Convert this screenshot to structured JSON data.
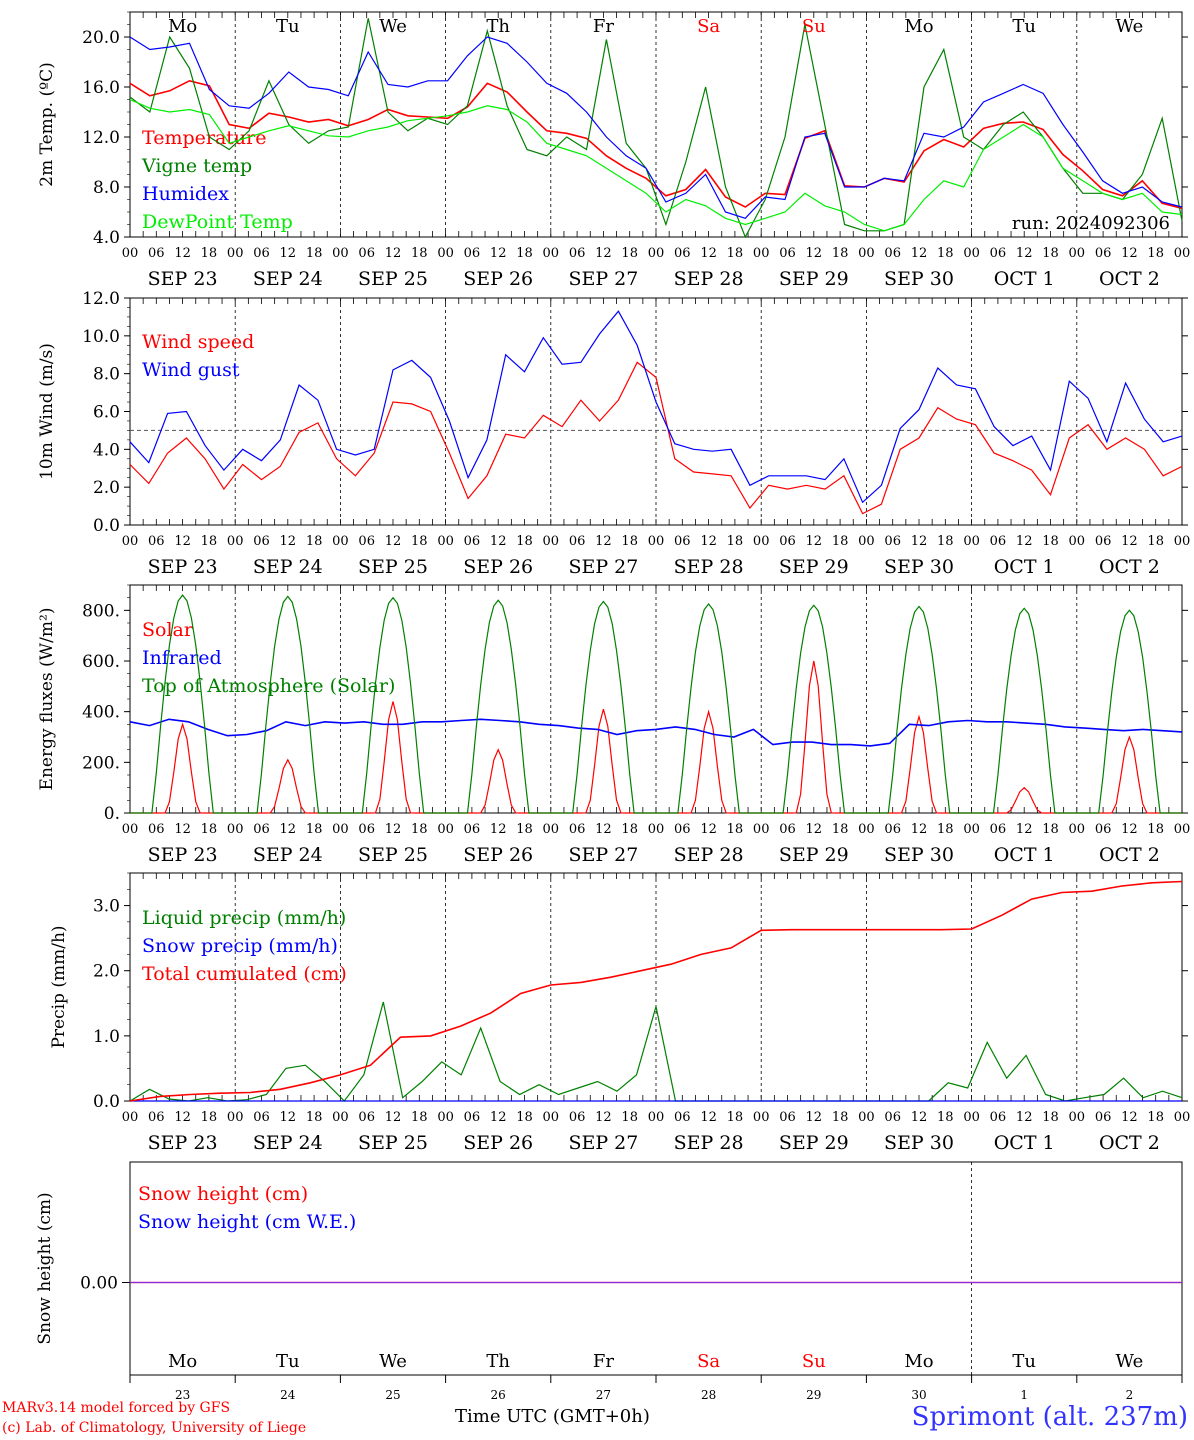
{
  "chart_data": {
    "days": [
      "Mo",
      "Tu",
      "We",
      "Th",
      "Fr",
      "Sa",
      "Su",
      "Mo",
      "Tu",
      "We"
    ],
    "weekend_days": [
      "Sa",
      "Su"
    ],
    "dates": [
      "SEP 23",
      "SEP 24",
      "SEP 25",
      "SEP 26",
      "SEP 27",
      "SEP 28",
      "SEP 29",
      "SEP 30",
      "OCT  1",
      "OCT  2"
    ],
    "date_numbers": [
      "23",
      "24",
      "25",
      "26",
      "27",
      "28",
      "29",
      "30",
      "1",
      "2"
    ],
    "hour_ticks": [
      "00",
      "06",
      "12",
      "18"
    ],
    "last_hour_tick": "00",
    "panels": [
      {
        "id": "temperature",
        "type": "line",
        "ylabel": "2m Temp. (ºC)",
        "ylim": [
          4,
          22
        ],
        "yticks": [
          4,
          8,
          12,
          16,
          20
        ],
        "ytick_labels": [
          "4.0",
          "8.0",
          "12.0",
          "16.0",
          "20.0"
        ],
        "annotation": "run: 2024092306",
        "series": [
          {
            "name": "Temperature",
            "color": "#ff0000",
            "values": [
              16.3,
              15.3,
              15.7,
              16.5,
              16.1,
              13.0,
              12.7,
              13.9,
              13.6,
              13.2,
              13.4,
              12.9,
              13.4,
              14.2,
              13.7,
              13.6,
              13.5,
              14.4,
              16.3,
              15.6,
              14.0,
              12.5,
              12.3,
              11.9,
              10.5,
              9.5,
              8.7,
              7.3,
              7.8,
              9.4,
              7.2,
              6.4,
              7.5,
              7.4,
              11.9,
              12.5,
              8.1,
              8.0,
              8.7,
              8.4,
              10.9,
              11.8,
              11.2,
              12.7,
              13.1,
              13.2,
              12.6,
              10.6,
              9.3,
              7.8,
              7.3,
              8.5,
              6.7,
              6.3
            ]
          },
          {
            "name": "Vigne temp",
            "color": "#008000",
            "values": [
              15.2,
              14.0,
              20.0,
              17.5,
              12.0,
              11.0,
              12.5,
              16.5,
              13.0,
              11.5,
              12.5,
              12.8,
              21.5,
              14.0,
              12.5,
              13.5,
              13.0,
              14.5,
              20.5,
              14.5,
              11.0,
              10.5,
              12.0,
              11.0,
              19.8,
              11.5,
              9.5,
              5.0,
              10.0,
              16.0,
              8.0,
              4.0,
              7.0,
              12.0,
              21.0,
              13.0,
              5.0,
              4.5,
              4.5,
              5.0,
              16.0,
              19.0,
              12.0,
              11.0,
              13.0,
              14.0,
              12.0,
              9.5,
              7.5,
              7.5,
              7.0,
              9.0,
              13.5,
              5.3
            ]
          },
          {
            "name": "Humidex",
            "color": "#0000ff",
            "values": [
              20.0,
              19.0,
              19.2,
              19.5,
              15.8,
              14.5,
              14.3,
              15.5,
              17.2,
              16.0,
              15.8,
              15.3,
              18.8,
              16.2,
              16.0,
              16.5,
              16.5,
              18.5,
              20.0,
              19.5,
              18.0,
              16.3,
              15.5,
              14.0,
              12.0,
              10.5,
              9.5,
              6.8,
              7.5,
              9.0,
              6.0,
              5.5,
              7.2,
              7.0,
              12.0,
              12.3,
              8.0,
              8.0,
              8.7,
              8.5,
              12.3,
              12.0,
              12.8,
              14.8,
              15.5,
              16.2,
              15.5,
              13.0,
              10.8,
              8.5,
              7.5,
              8.0,
              6.8,
              6.4
            ]
          },
          {
            "name": "DewPoint Temp",
            "color": "#00ee00",
            "values": [
              15.0,
              14.3,
              14.0,
              14.2,
              13.8,
              11.5,
              12.0,
              12.5,
              12.9,
              12.5,
              12.1,
              12.0,
              12.5,
              12.8,
              13.3,
              13.5,
              13.7,
              14.0,
              14.5,
              14.2,
              13.2,
              11.5,
              11.0,
              10.5,
              9.5,
              8.5,
              7.5,
              6.0,
              7.0,
              6.5,
              5.5,
              5.0,
              5.5,
              6.0,
              7.5,
              6.5,
              6.0,
              5.0,
              4.5,
              5.0,
              7.0,
              8.5,
              8.0,
              11.0,
              12.0,
              13.0,
              12.0,
              9.5,
              8.5,
              7.5,
              7.0,
              7.5,
              6.0,
              5.8
            ]
          }
        ]
      },
      {
        "id": "wind",
        "type": "line",
        "ylabel": "10m Wind (m/s)",
        "ylim": [
          0,
          12
        ],
        "yticks": [
          0,
          2,
          4,
          6,
          8,
          10,
          12
        ],
        "ytick_labels": [
          "0.0",
          "2.0",
          "4.0",
          "6.0",
          "8.0",
          "10.0",
          "12.0"
        ],
        "reference_line": 5.0,
        "series": [
          {
            "name": "Wind speed",
            "color": "#ff0000",
            "values": [
              3.2,
              2.2,
              3.8,
              4.6,
              3.5,
              1.9,
              3.2,
              2.4,
              3.1,
              4.9,
              5.4,
              3.5,
              2.6,
              3.8,
              6.5,
              6.4,
              6.0,
              3.8,
              1.4,
              2.6,
              4.8,
              4.6,
              5.8,
              5.2,
              6.6,
              5.5,
              6.6,
              8.6,
              7.8,
              3.5,
              2.8,
              2.7,
              2.6,
              0.9,
              2.1,
              1.9,
              2.1,
              1.9,
              2.6,
              0.6,
              1.1,
              4.0,
              4.6,
              6.2,
              5.6,
              5.3,
              3.8,
              3.4,
              2.9,
              1.6,
              4.6,
              5.3,
              4.0,
              4.6,
              4.0,
              2.6,
              3.1
            ]
          },
          {
            "name": "Wind gust",
            "color": "#0000ff",
            "values": [
              4.4,
              3.3,
              5.9,
              6.0,
              4.2,
              2.9,
              4.0,
              3.4,
              4.5,
              7.4,
              6.6,
              4.0,
              3.7,
              4.0,
              8.2,
              8.7,
              7.8,
              5.5,
              2.5,
              4.5,
              9.0,
              8.1,
              9.9,
              8.5,
              8.6,
              10.1,
              11.3,
              9.5,
              6.5,
              4.3,
              4.0,
              3.9,
              4.0,
              2.1,
              2.6,
              2.6,
              2.6,
              2.4,
              3.5,
              1.2,
              2.1,
              5.1,
              6.1,
              8.3,
              7.4,
              7.2,
              5.2,
              4.2,
              4.7,
              2.9,
              7.6,
              6.7,
              4.4,
              7.5,
              5.6,
              4.4,
              4.7
            ]
          }
        ]
      },
      {
        "id": "energy",
        "type": "line",
        "ylabel": "Energy fluxes (W/m²)",
        "ylim": [
          0,
          900
        ],
        "yticks": [
          0,
          200,
          400,
          600,
          800
        ],
        "ytick_labels": [
          "0.",
          "200.",
          "400.",
          "600.",
          "800."
        ],
        "series": [
          {
            "name": "Solar",
            "color": "#ff0000",
            "daily_peak_hour": 12,
            "daily_peaks": [
              350,
              210,
              440,
              250,
              410,
              400,
              600,
              380,
              100,
              300
            ]
          },
          {
            "name": "Infrared",
            "color": "#0000ff",
            "values": [
              360,
              345,
              370,
              360,
              330,
              305,
              310,
              325,
              360,
              345,
              360,
              355,
              360,
              350,
              350,
              360,
              360,
              365,
              370,
              365,
              360,
              350,
              345,
              335,
              330,
              310,
              325,
              330,
              340,
              330,
              310,
              300,
              330,
              270,
              280,
              280,
              270,
              270,
              265,
              275,
              350,
              345,
              360,
              365,
              360,
              360,
              355,
              350,
              340,
              335,
              330,
              325,
              330,
              325,
              320
            ]
          },
          {
            "name": "Top of Atmosphere (Solar)",
            "color": "#008000",
            "daily_peak_hour": 12,
            "daily_peaks": [
              860,
              855,
              850,
              840,
              835,
              825,
              820,
              815,
              808,
              800
            ]
          }
        ]
      },
      {
        "id": "precip",
        "type": "line",
        "ylabel": "Precip (mm/h)",
        "ylim": [
          0,
          3.5
        ],
        "yticks": [
          0,
          1,
          2,
          3
        ],
        "ytick_labels": [
          "0.0",
          "1.0",
          "2.0",
          "3.0"
        ],
        "series": [
          {
            "name": "Liquid precip (mm/h)",
            "color": "#008000",
            "values": [
              0.0,
              0.18,
              0.03,
              0.0,
              0.05,
              0.0,
              0.02,
              0.1,
              0.5,
              0.55,
              0.3,
              0.0,
              0.4,
              1.52,
              0.05,
              0.3,
              0.6,
              0.4,
              1.12,
              0.3,
              0.1,
              0.25,
              0.1,
              0.2,
              0.3,
              0.15,
              0.4,
              1.45,
              0.0,
              0,
              0,
              0,
              0,
              0,
              0,
              0,
              0,
              0,
              0,
              0,
              0,
              0,
              0.28,
              0.2,
              0.9,
              0.35,
              0.7,
              0.1,
              0.0,
              0.05,
              0.1,
              0.35,
              0.05,
              0.15,
              0.05
            ]
          },
          {
            "name": "Snow precip (mm/h)",
            "color": "#0000ff",
            "values": [
              0,
              0
            ]
          },
          {
            "name": "Total cumulated (cm)",
            "color": "#ff0000",
            "values": [
              0.0,
              0.07,
              0.1,
              0.12,
              0.13,
              0.18,
              0.28,
              0.4,
              0.55,
              0.98,
              1.0,
              1.15,
              1.35,
              1.65,
              1.78,
              1.82,
              1.9,
              2.0,
              2.1,
              2.25,
              2.35,
              2.62,
              2.63,
              2.63,
              2.63,
              2.63,
              2.63,
              2.63,
              2.64,
              2.85,
              3.1,
              3.2,
              3.22,
              3.3,
              3.35,
              3.37
            ]
          }
        ]
      },
      {
        "id": "snow",
        "type": "line",
        "ylabel": "Snow height (cm)",
        "ytick_labels": [
          "0.00"
        ],
        "series": [
          {
            "name": "Snow height (cm)",
            "color": "#ff0000",
            "values": [
              0,
              0
            ]
          },
          {
            "name": "Snow height (cm W.E.)",
            "color": "#0000ff",
            "values": [
              0,
              0
            ]
          }
        ]
      }
    ]
  },
  "footer": {
    "credit_line1": "MARv3.14 model forced by GFS",
    "credit_line2": "(c) Lab. of Climatology, University of Liege",
    "time_label": "Time UTC (GMT+0h)",
    "station": "Sprimont (alt. 237m)"
  }
}
